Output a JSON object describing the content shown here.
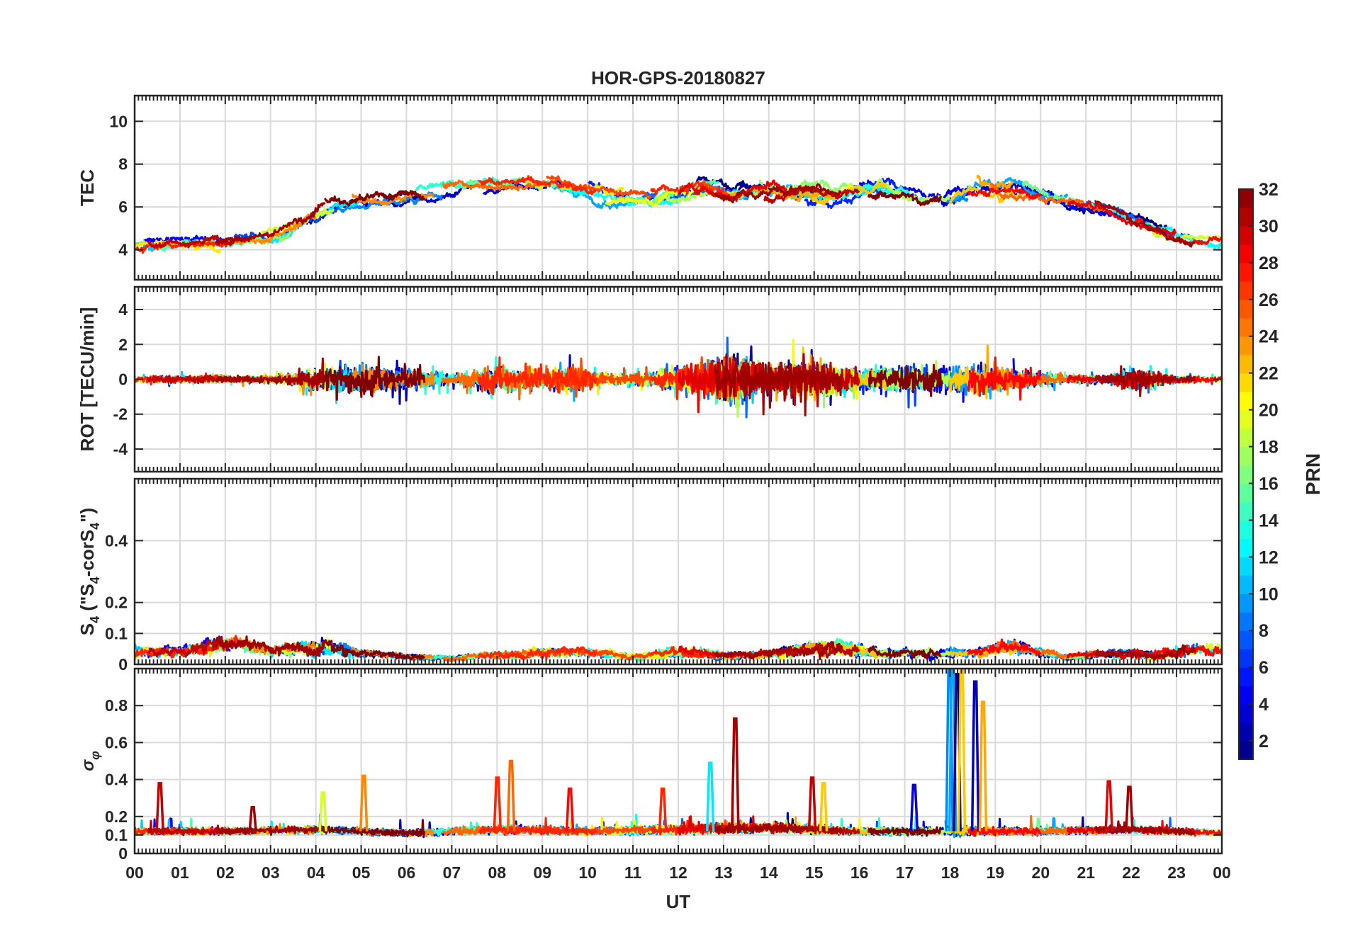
{
  "title": "HOR-GPS-20180827",
  "chart_data": {
    "type": "line",
    "title": "HOR-GPS-20180827",
    "xlabel": "UT",
    "x_ticks": [
      "00",
      "01",
      "02",
      "03",
      "04",
      "05",
      "06",
      "07",
      "08",
      "09",
      "10",
      "11",
      "12",
      "13",
      "14",
      "15",
      "16",
      "17",
      "18",
      "19",
      "20",
      "21",
      "22",
      "23",
      "00"
    ],
    "xlim": [
      0,
      24
    ],
    "grid": true,
    "panels": [
      {
        "id": "tec",
        "ylabel": "TEC",
        "ylim": [
          2.6,
          11.2
        ],
        "y_ticks": [
          4,
          6,
          8,
          10
        ],
        "y_tick_labels": [
          "4",
          "6",
          "8",
          "10"
        ],
        "envelope": [
          [
            0.0,
            4.2,
            1.2
          ],
          [
            1.0,
            4.3,
            1.0
          ],
          [
            2.0,
            4.4,
            1.1
          ],
          [
            3.0,
            4.6,
            1.2
          ],
          [
            3.8,
            5.6,
            1.6
          ],
          [
            4.5,
            6.2,
            1.6
          ],
          [
            5.5,
            6.3,
            1.5
          ],
          [
            6.5,
            6.6,
            1.4
          ],
          [
            7.5,
            7.0,
            1.3
          ],
          [
            8.5,
            7.1,
            1.2
          ],
          [
            9.5,
            7.0,
            1.3
          ],
          [
            10.5,
            6.5,
            1.4
          ],
          [
            11.5,
            6.4,
            1.5
          ],
          [
            12.5,
            7.0,
            1.8
          ],
          [
            13.5,
            6.8,
            1.7
          ],
          [
            14.5,
            6.9,
            1.9
          ],
          [
            15.5,
            6.6,
            1.6
          ],
          [
            16.5,
            7.0,
            1.5
          ],
          [
            17.5,
            6.4,
            1.5
          ],
          [
            18.5,
            6.8,
            1.8
          ],
          [
            19.5,
            6.9,
            1.6
          ],
          [
            20.5,
            6.3,
            1.5
          ],
          [
            21.5,
            5.8,
            1.3
          ],
          [
            22.5,
            5.0,
            1.2
          ],
          [
            23.5,
            4.5,
            1.0
          ],
          [
            24.0,
            4.4,
            1.0
          ]
        ]
      },
      {
        "id": "rot",
        "ylabel": "ROT [TECU/min]",
        "ylim": [
          -5.3,
          5.3
        ],
        "y_ticks": [
          -4,
          -2,
          0,
          2,
          4
        ],
        "y_tick_labels": [
          "-4",
          "-2",
          "0",
          "2",
          "4"
        ],
        "envelope": [
          [
            0.0,
            0.0,
            0.25
          ],
          [
            1.0,
            0.0,
            0.3
          ],
          [
            2.0,
            0.0,
            0.3
          ],
          [
            3.0,
            0.0,
            0.3
          ],
          [
            4.0,
            0.0,
            0.9
          ],
          [
            5.0,
            0.0,
            1.4
          ],
          [
            6.0,
            0.0,
            0.9
          ],
          [
            7.0,
            0.0,
            0.5
          ],
          [
            8.0,
            0.0,
            1.2
          ],
          [
            9.0,
            0.0,
            0.8
          ],
          [
            9.6,
            0.0,
            1.3
          ],
          [
            10.5,
            0.0,
            0.4
          ],
          [
            11.5,
            0.0,
            0.6
          ],
          [
            12.5,
            0.0,
            1.5
          ],
          [
            13.2,
            0.0,
            2.4
          ],
          [
            14.0,
            0.0,
            1.2
          ],
          [
            15.0,
            0.0,
            1.6
          ],
          [
            16.0,
            0.0,
            0.8
          ],
          [
            17.0,
            0.0,
            1.1
          ],
          [
            18.0,
            0.0,
            1.2
          ],
          [
            18.7,
            0.0,
            1.4
          ],
          [
            19.5,
            0.0,
            0.8
          ],
          [
            20.5,
            0.0,
            0.4
          ],
          [
            21.5,
            0.0,
            0.35
          ],
          [
            22.0,
            0.0,
            1.0
          ],
          [
            23.0,
            0.0,
            0.3
          ],
          [
            24.0,
            0.0,
            0.25
          ]
        ]
      },
      {
        "id": "s4",
        "ylabel_main": "S",
        "ylabel_sub": "4",
        "ylabel_mid": " (\"S",
        "ylabel_mid_sub": "4",
        "ylabel_tail": "-corS",
        "ylabel_tail_sub": "4",
        "ylabel_end": "\")",
        "ylim": [
          0,
          0.6
        ],
        "y_ticks": [
          0,
          0.1,
          0.2,
          0.4
        ],
        "y_tick_labels": [
          "0",
          "0.1",
          "0.2",
          "0.4"
        ],
        "envelope": [
          [
            0.0,
            0.045,
            0.04
          ],
          [
            1.0,
            0.04,
            0.035
          ],
          [
            1.7,
            0.06,
            0.06
          ],
          [
            2.2,
            0.07,
            0.05
          ],
          [
            3.0,
            0.045,
            0.04
          ],
          [
            4.2,
            0.06,
            0.06
          ],
          [
            5.0,
            0.035,
            0.03
          ],
          [
            6.0,
            0.025,
            0.02
          ],
          [
            7.0,
            0.02,
            0.02
          ],
          [
            8.0,
            0.03,
            0.025
          ],
          [
            9.0,
            0.04,
            0.035
          ],
          [
            10.0,
            0.04,
            0.03
          ],
          [
            11.0,
            0.025,
            0.02
          ],
          [
            12.0,
            0.04,
            0.04
          ],
          [
            13.0,
            0.03,
            0.025
          ],
          [
            14.0,
            0.035,
            0.03
          ],
          [
            15.5,
            0.06,
            0.05
          ],
          [
            16.5,
            0.035,
            0.03
          ],
          [
            17.5,
            0.04,
            0.035
          ],
          [
            18.5,
            0.035,
            0.03
          ],
          [
            19.3,
            0.06,
            0.05
          ],
          [
            20.5,
            0.025,
            0.02
          ],
          [
            21.5,
            0.035,
            0.03
          ],
          [
            22.5,
            0.03,
            0.03
          ],
          [
            23.5,
            0.05,
            0.045
          ],
          [
            24.0,
            0.045,
            0.04
          ]
        ]
      },
      {
        "id": "sigma",
        "ylabel_main": "σ",
        "ylabel_sub": "φ",
        "ylim": [
          0,
          1.0
        ],
        "y_ticks": [
          0,
          0.1,
          0.2,
          0.4,
          0.6,
          0.8
        ],
        "y_tick_labels": [
          "0",
          "0.1",
          "0.2",
          "0.4",
          "0.6",
          "0.8"
        ],
        "envelope": [
          [
            0.0,
            0.12,
            0.03
          ],
          [
            2.0,
            0.12,
            0.03
          ],
          [
            4.0,
            0.13,
            0.03
          ],
          [
            6.0,
            0.11,
            0.03
          ],
          [
            8.0,
            0.13,
            0.04
          ],
          [
            10.0,
            0.12,
            0.03
          ],
          [
            12.0,
            0.13,
            0.04
          ],
          [
            14.0,
            0.14,
            0.04
          ],
          [
            16.0,
            0.12,
            0.03
          ],
          [
            18.0,
            0.12,
            0.04
          ],
          [
            20.0,
            0.12,
            0.03
          ],
          [
            22.0,
            0.13,
            0.03
          ],
          [
            24.0,
            0.11,
            0.03
          ]
        ],
        "spikes": [
          {
            "x": 0.55,
            "y": 0.38,
            "prn": 30
          },
          {
            "x": 2.6,
            "y": 0.25,
            "prn": 31
          },
          {
            "x": 4.15,
            "y": 0.33,
            "prn": 19
          },
          {
            "x": 5.05,
            "y": 0.42,
            "prn": 24
          },
          {
            "x": 8.0,
            "y": 0.41,
            "prn": 27
          },
          {
            "x": 8.3,
            "y": 0.5,
            "prn": 25
          },
          {
            "x": 9.6,
            "y": 0.35,
            "prn": 28
          },
          {
            "x": 11.65,
            "y": 0.35,
            "prn": 27
          },
          {
            "x": 12.7,
            "y": 0.49,
            "prn": 12
          },
          {
            "x": 13.25,
            "y": 0.73,
            "prn": 31
          },
          {
            "x": 14.95,
            "y": 0.41,
            "prn": 30
          },
          {
            "x": 15.2,
            "y": 0.38,
            "prn": 22
          },
          {
            "x": 17.2,
            "y": 0.37,
            "prn": 4
          },
          {
            "x": 17.98,
            "y": 1.0,
            "prn": 9
          },
          {
            "x": 18.05,
            "y": 1.0,
            "prn": 10
          },
          {
            "x": 18.15,
            "y": 0.97,
            "prn": 1
          },
          {
            "x": 18.25,
            "y": 1.0,
            "prn": 22
          },
          {
            "x": 18.55,
            "y": 0.93,
            "prn": 3
          },
          {
            "x": 18.72,
            "y": 0.82,
            "prn": 23
          },
          {
            "x": 21.5,
            "y": 0.39,
            "prn": 29
          },
          {
            "x": 21.95,
            "y": 0.36,
            "prn": 31
          }
        ]
      }
    ],
    "colorbar": {
      "label": "PRN",
      "range": [
        1,
        32
      ],
      "ticks": [
        2,
        4,
        6,
        8,
        10,
        12,
        14,
        16,
        18,
        20,
        22,
        24,
        26,
        28,
        30,
        32
      ],
      "colormap": "jet"
    },
    "series": [
      {
        "prn": 1,
        "segments": [
          [
            12.4,
            14.6
          ],
          [
            20.5,
            22.8
          ]
        ]
      },
      {
        "prn": 2,
        "segments": [
          [
            3.8,
            6.2
          ],
          [
            13.0,
            15.4
          ]
        ]
      },
      {
        "prn": 3,
        "segments": [
          [
            5.6,
            7.9
          ],
          [
            17.8,
            20.3
          ]
        ]
      },
      {
        "prn": 4,
        "segments": [
          [
            7.7,
            10.0
          ],
          [
            16.0,
            18.4
          ]
        ]
      },
      {
        "prn": 5,
        "segments": [
          [
            0.2,
            2.1
          ],
          [
            19.4,
            21.8
          ]
        ]
      },
      {
        "prn": 6,
        "segments": [
          [
            10.0,
            12.3
          ],
          [
            14.8,
            17.0
          ]
        ]
      },
      {
        "prn": 7,
        "segments": [
          [
            2.2,
            4.6
          ],
          [
            15.5,
            17.5
          ]
        ]
      },
      {
        "prn": 8,
        "segments": [
          [
            11.2,
            13.6
          ],
          [
            21.0,
            23.6
          ]
        ]
      },
      {
        "prn": 9,
        "segments": [
          [
            4.5,
            6.8
          ],
          [
            17.9,
            18.4
          ]
        ]
      },
      {
        "prn": 10,
        "segments": [
          [
            8.8,
            11.1
          ],
          [
            18.0,
            20.6
          ]
        ]
      },
      {
        "prn": 11,
        "segments": [
          [
            0.0,
            1.4
          ],
          [
            12.6,
            14.9
          ]
        ]
      },
      {
        "prn": 12,
        "segments": [
          [
            3.0,
            5.1
          ],
          [
            14.5,
            16.9
          ]
        ]
      },
      {
        "prn": 13,
        "segments": [
          [
            9.5,
            12.0
          ],
          [
            21.6,
            24.0
          ]
        ]
      },
      {
        "prn": 14,
        "segments": [
          [
            6.2,
            8.4
          ],
          [
            15.2,
            17.4
          ]
        ]
      },
      {
        "prn": 15,
        "segments": [
          [
            0.6,
            2.8
          ],
          [
            10.6,
            12.9
          ]
        ]
      },
      {
        "prn": 16,
        "segments": [
          [
            7.2,
            9.5
          ],
          [
            19.6,
            21.2
          ]
        ]
      },
      {
        "prn": 17,
        "segments": [
          [
            1.4,
            3.6
          ],
          [
            13.8,
            15.9
          ]
        ]
      },
      {
        "prn": 18,
        "segments": [
          [
            11.5,
            13.8
          ],
          [
            16.3,
            18.0
          ]
        ]
      },
      {
        "prn": 19,
        "segments": [
          [
            2.8,
            4.4
          ],
          [
            22.3,
            24.0
          ]
        ]
      },
      {
        "prn": 20,
        "segments": [
          [
            10.4,
            12.6
          ],
          [
            14.2,
            16.1
          ]
        ]
      },
      {
        "prn": 21,
        "segments": [
          [
            0.0,
            1.9
          ],
          [
            8.6,
            10.8
          ]
        ]
      },
      {
        "prn": 22,
        "segments": [
          [
            14.6,
            16.6
          ],
          [
            18.0,
            19.6
          ]
        ]
      },
      {
        "prn": 23,
        "segments": [
          [
            12.9,
            15.4
          ],
          [
            18.6,
            19.4
          ]
        ]
      },
      {
        "prn": 24,
        "segments": [
          [
            1.9,
            4.0
          ],
          [
            4.8,
            6.6
          ]
        ]
      },
      {
        "prn": 25,
        "segments": [
          [
            6.8,
            9.1
          ],
          [
            18.9,
            21.4
          ]
        ]
      },
      {
        "prn": 26,
        "segments": [
          [
            9.1,
            11.4
          ],
          [
            12.4,
            13.1
          ]
        ]
      },
      {
        "prn": 27,
        "segments": [
          [
            0.0,
            2.3
          ],
          [
            7.6,
            10.2
          ],
          [
            11.4,
            13.0
          ]
        ]
      },
      {
        "prn": 28,
        "segments": [
          [
            18.4,
            20.0
          ],
          [
            22.1,
            24.0
          ]
        ]
      },
      {
        "prn": 29,
        "segments": [
          [
            12.0,
            14.4
          ],
          [
            20.6,
            23.0
          ]
        ]
      },
      {
        "prn": 30,
        "segments": [
          [
            0.3,
            2.6
          ],
          [
            13.9,
            16.0
          ]
        ]
      },
      {
        "prn": 31,
        "segments": [
          [
            1.8,
            4.2
          ],
          [
            12.8,
            15.6
          ],
          [
            21.2,
            23.4
          ]
        ]
      },
      {
        "prn": 32,
        "segments": [
          [
            4.2,
            6.4
          ],
          [
            16.2,
            17.8
          ]
        ]
      }
    ]
  }
}
